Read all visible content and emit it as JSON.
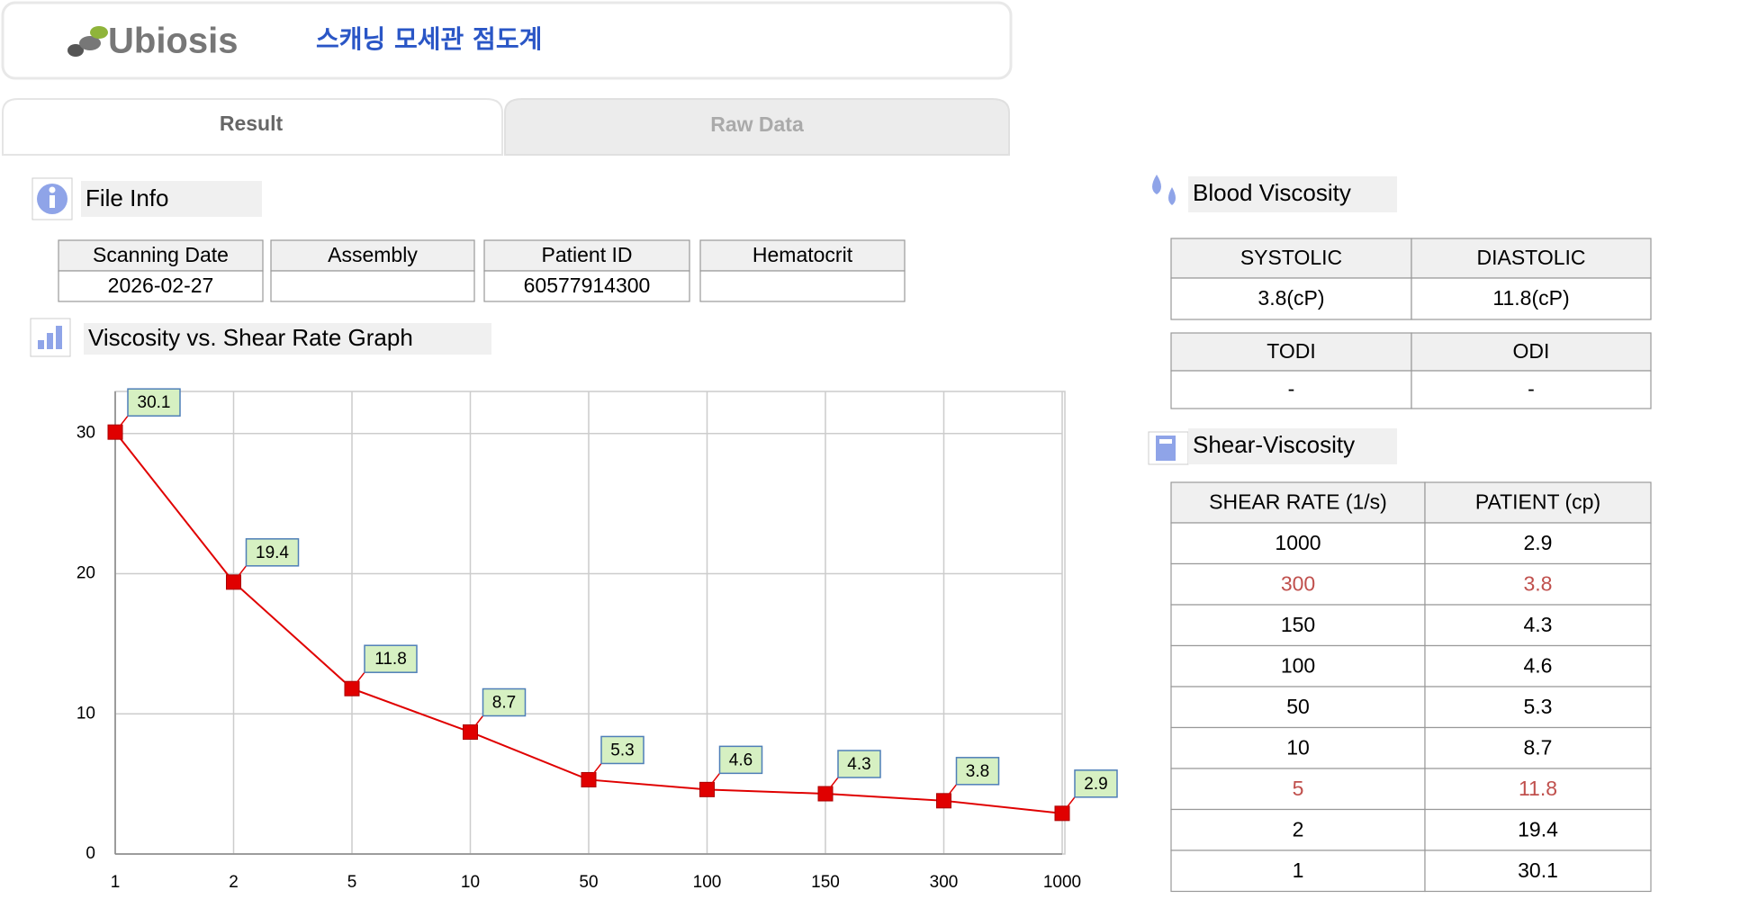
{
  "header": {
    "logo": "Ubiosis",
    "title": "스캐닝 모세관 점도계"
  },
  "tabs": [
    "Result",
    "Raw Data"
  ],
  "file_info": {
    "title": "File Info",
    "columns": [
      {
        "label": "Scanning Date",
        "value": "2026-02-27"
      },
      {
        "label": "Assembly"
      },
      {
        "label": "Patient ID",
        "value": "60577914300"
      },
      {
        "label": "Hematocrit"
      }
    ]
  },
  "chart_data": {
    "type": "line",
    "title": "Viscosity vs. Shear Rate Graph",
    "categories": [
      "1",
      "2",
      "5",
      "10",
      "50",
      "100",
      "150",
      "300",
      "1000"
    ],
    "values": [
      30.1,
      19.4,
      11.8,
      8.7,
      5.3,
      4.6,
      4.3,
      3.8,
      2.9
    ],
    "color": "#e00000",
    "label_fill": "#d6f0c2",
    "label_border": "#4f7fb8",
    "ylim": [
      0,
      33
    ],
    "yticks": [
      0,
      10,
      20,
      30
    ],
    "grid": true
  },
  "blood_viscosity": {
    "title": "Blood Viscosity",
    "tables": [
      {
        "header": [
          "SYSTOLIC",
          "DIASTOLIC"
        ],
        "row": [
          "3.8(cP)",
          "11.8(cP)"
        ]
      },
      {
        "header": [
          "TODI",
          "ODI"
        ],
        "row": [
          "-",
          "-"
        ]
      }
    ]
  },
  "shear_viscosity": {
    "title": "Shear-Viscosity",
    "header": [
      "SHEAR RATE (1/s)",
      "PATIENT (cp)"
    ],
    "rows": [
      {
        "cells": [
          "1000",
          "2.9"
        ],
        "color": "#000000"
      },
      {
        "cells": [
          "300",
          "3.8"
        ],
        "color": "#c0504d"
      },
      {
        "cells": [
          "150",
          "4.3"
        ],
        "color": "#000000"
      },
      {
        "cells": [
          "100",
          "4.6"
        ],
        "color": "#000000"
      },
      {
        "cells": [
          "50",
          "5.3"
        ],
        "color": "#000000"
      },
      {
        "cells": [
          "10",
          "8.7"
        ],
        "color": "#000000"
      },
      {
        "cells": [
          "5",
          "11.8"
        ],
        "color": "#c0504d"
      },
      {
        "cells": [
          "2",
          "19.4"
        ],
        "color": "#000000"
      },
      {
        "cells": [
          "1",
          "30.1"
        ],
        "color": "#000000"
      }
    ]
  }
}
